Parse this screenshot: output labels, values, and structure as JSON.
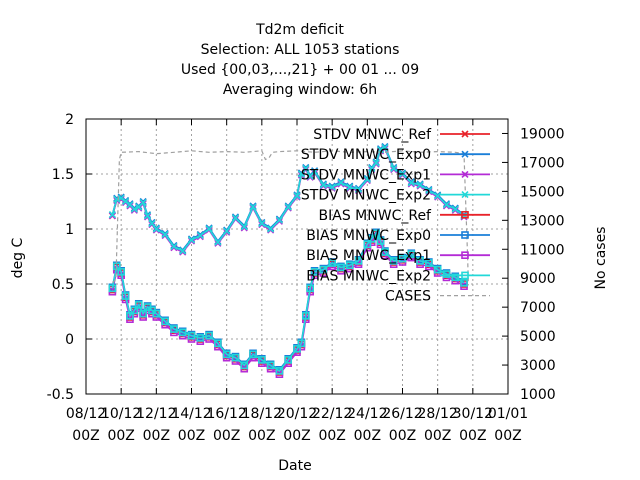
{
  "chart_data": {
    "type": "line",
    "title": [
      "Td2m deficit",
      "Selection: ALL    1053 stations",
      "Used {00,03,...,21} + 00 01 ... 09",
      "Averaging window:  6h"
    ],
    "xlabel": "Date",
    "ylabel": "deg C",
    "y2label": "No cases",
    "x_ticks": [
      {
        "day": 8,
        "l1": "08/12",
        "l2": "00Z"
      },
      {
        "day": 10,
        "l1": "10/12",
        "l2": "00Z"
      },
      {
        "day": 12,
        "l1": "12/12",
        "l2": "00Z"
      },
      {
        "day": 14,
        "l1": "14/12",
        "l2": "00Z"
      },
      {
        "day": 16,
        "l1": "16/12",
        "l2": "00Z"
      },
      {
        "day": 18,
        "l1": "18/12",
        "l2": "00Z"
      },
      {
        "day": 20,
        "l1": "20/12",
        "l2": "00Z"
      },
      {
        "day": 22,
        "l1": "22/12",
        "l2": "00Z"
      },
      {
        "day": 24,
        "l1": "24/12",
        "l2": "00Z"
      },
      {
        "day": 26,
        "l1": "26/12",
        "l2": "00Z"
      },
      {
        "day": 28,
        "l1": "28/12",
        "l2": "00Z"
      },
      {
        "day": 30,
        "l1": "30/12",
        "l2": "00Z"
      },
      {
        "day": 32,
        "l1": "01/01",
        "l2": "00Z"
      }
    ],
    "xlim": [
      8,
      32
    ],
    "ylim": [
      -0.5,
      2
    ],
    "y_ticks": [
      "-0.5",
      "0",
      "0.5",
      "1",
      "1.5",
      "2"
    ],
    "y2lim": [
      1000,
      20000
    ],
    "y2_ticks": [
      "1000",
      "3000",
      "5000",
      "7000",
      "9000",
      "11000",
      "13000",
      "15000",
      "17000",
      "19000"
    ],
    "grid": true,
    "legend_position": "top-right",
    "series": [
      {
        "name": "STDV MNWC_Ref",
        "color": "#e8232a",
        "marker": "x",
        "axis": "y1",
        "x": [
          9.5,
          9.75,
          10,
          10.25,
          10.5,
          10.75,
          11,
          11.25,
          11.5,
          11.75,
          12,
          12.5,
          13,
          13.5,
          14,
          14.5,
          15,
          15.5,
          16,
          16.5,
          17,
          17.5,
          18,
          18.5,
          19,
          19.5,
          20,
          20.25,
          20.5,
          20.75,
          21,
          21.5,
          22,
          22.5,
          23,
          23.5,
          24,
          24.25,
          24.5,
          24.75,
          25,
          25.5,
          26,
          26.5,
          27,
          27.5,
          28,
          28.5,
          29,
          29.5
        ],
        "y": [
          1.12,
          1.27,
          1.28,
          1.25,
          1.22,
          1.18,
          1.2,
          1.24,
          1.12,
          1.05,
          1.0,
          0.95,
          0.84,
          0.8,
          0.9,
          0.94,
          1.0,
          0.88,
          0.98,
          1.1,
          1.02,
          1.2,
          1.05,
          1.0,
          1.08,
          1.2,
          1.3,
          1.5,
          1.55,
          1.48,
          1.52,
          1.4,
          1.38,
          1.42,
          1.38,
          1.36,
          1.45,
          1.55,
          1.6,
          1.72,
          1.74,
          1.55,
          1.5,
          1.42,
          1.4,
          1.35,
          1.3,
          1.22,
          1.18,
          1.12
        ]
      },
      {
        "name": "STDV MNWC_Exp0",
        "color": "#1a7fd8",
        "marker": "x",
        "axis": "y1",
        "x": [
          9.5,
          9.75,
          10,
          10.25,
          10.5,
          10.75,
          11,
          11.25,
          11.5,
          11.75,
          12,
          12.5,
          13,
          13.5,
          14,
          14.5,
          15,
          15.5,
          16,
          16.5,
          17,
          17.5,
          18,
          18.5,
          19,
          19.5,
          20,
          20.25,
          20.5,
          20.75,
          21,
          21.5,
          22,
          22.5,
          23,
          23.5,
          24,
          24.25,
          24.5,
          24.75,
          25,
          25.5,
          26,
          26.5,
          27,
          27.5,
          28,
          28.5,
          29,
          29.5
        ],
        "y": [
          1.13,
          1.28,
          1.29,
          1.26,
          1.23,
          1.19,
          1.21,
          1.25,
          1.13,
          1.06,
          1.01,
          0.96,
          0.85,
          0.81,
          0.91,
          0.95,
          1.01,
          0.89,
          0.99,
          1.11,
          1.03,
          1.21,
          1.06,
          1.01,
          1.09,
          1.21,
          1.31,
          1.51,
          1.56,
          1.49,
          1.53,
          1.41,
          1.39,
          1.43,
          1.39,
          1.37,
          1.46,
          1.56,
          1.61,
          1.73,
          1.75,
          1.56,
          1.51,
          1.43,
          1.41,
          1.36,
          1.31,
          1.23,
          1.19,
          1.13
        ]
      },
      {
        "name": "STDV MNWC_Exp1",
        "color": "#b42bd6",
        "marker": "x",
        "axis": "y1",
        "x": [
          9.5,
          9.75,
          10,
          10.25,
          10.5,
          10.75,
          11,
          11.25,
          11.5,
          11.75,
          12,
          12.5,
          13,
          13.5,
          14,
          14.5,
          15,
          15.5,
          16,
          16.5,
          17,
          17.5,
          18,
          18.5,
          19,
          19.5,
          20,
          20.25,
          20.5,
          20.75,
          21,
          21.5,
          22,
          22.5,
          23,
          23.5,
          24,
          24.25,
          24.5,
          24.75,
          25,
          25.5,
          26,
          26.5,
          27,
          27.5,
          28,
          28.5,
          29,
          29.5
        ],
        "y": [
          1.12,
          1.26,
          1.27,
          1.24,
          1.21,
          1.17,
          1.19,
          1.23,
          1.11,
          1.04,
          0.99,
          0.94,
          0.83,
          0.79,
          0.89,
          0.93,
          0.99,
          0.87,
          0.97,
          1.09,
          1.01,
          1.19,
          1.04,
          0.99,
          1.07,
          1.19,
          1.29,
          1.49,
          1.54,
          1.47,
          1.51,
          1.39,
          1.37,
          1.41,
          1.37,
          1.35,
          1.44,
          1.54,
          1.59,
          1.71,
          1.73,
          1.54,
          1.49,
          1.41,
          1.39,
          1.34,
          1.29,
          1.21,
          1.17,
          1.11
        ]
      },
      {
        "name": "STDV MNWC_Exp2",
        "color": "#22d8d8",
        "marker": "x",
        "axis": "y1",
        "x": [
          9.5,
          9.75,
          10,
          10.25,
          10.5,
          10.75,
          11,
          11.25,
          11.5,
          11.75,
          12,
          12.5,
          13,
          13.5,
          14,
          14.5,
          15,
          15.5,
          16,
          16.5,
          17,
          17.5,
          18,
          18.5,
          19,
          19.5,
          20,
          20.25,
          20.5,
          20.75,
          21,
          21.5,
          22,
          22.5,
          23,
          23.5,
          24,
          24.25,
          24.5,
          24.75,
          25,
          25.5,
          26,
          26.5,
          27,
          27.5,
          28,
          28.5,
          29,
          29.5
        ],
        "y": [
          1.13,
          1.27,
          1.28,
          1.25,
          1.22,
          1.18,
          1.2,
          1.24,
          1.12,
          1.05,
          1.0,
          0.95,
          0.84,
          0.8,
          0.9,
          0.94,
          1.0,
          0.88,
          0.98,
          1.1,
          1.02,
          1.2,
          1.05,
          1.0,
          1.08,
          1.2,
          1.3,
          1.5,
          1.55,
          1.48,
          1.52,
          1.4,
          1.38,
          1.42,
          1.38,
          1.36,
          1.45,
          1.55,
          1.6,
          1.72,
          1.74,
          1.55,
          1.5,
          1.42,
          1.4,
          1.35,
          1.3,
          1.22,
          1.18,
          1.12
        ]
      },
      {
        "name": "BIAS MNWC_Ref",
        "color": "#e8232a",
        "marker": "square",
        "axis": "y1",
        "x": [
          9.5,
          9.75,
          10,
          10.25,
          10.5,
          10.75,
          11,
          11.25,
          11.5,
          11.75,
          12,
          12.5,
          13,
          13.5,
          14,
          14.5,
          15,
          15.5,
          16,
          16.5,
          17,
          17.5,
          18,
          18.5,
          19,
          19.5,
          20,
          20.25,
          20.5,
          20.75,
          21,
          21.5,
          22,
          22.5,
          23,
          23.5,
          24,
          24.25,
          24.5,
          24.75,
          25,
          25.5,
          26,
          26.5,
          27,
          27.5,
          28,
          28.5,
          29,
          29.5
        ],
        "y": [
          0.45,
          0.65,
          0.6,
          0.38,
          0.2,
          0.25,
          0.3,
          0.22,
          0.28,
          0.25,
          0.22,
          0.15,
          0.08,
          0.05,
          0.02,
          0.0,
          0.02,
          -0.05,
          -0.15,
          -0.18,
          -0.25,
          -0.15,
          -0.2,
          -0.25,
          -0.3,
          -0.2,
          -0.1,
          -0.05,
          0.2,
          0.45,
          0.6,
          0.62,
          0.68,
          0.64,
          0.66,
          0.7,
          0.85,
          0.9,
          0.95,
          0.88,
          0.78,
          0.7,
          0.72,
          0.76,
          0.7,
          0.68,
          0.62,
          0.58,
          0.55,
          0.5
        ]
      },
      {
        "name": "BIAS MNWC_Exp0",
        "color": "#1a7fd8",
        "marker": "square",
        "axis": "y1",
        "x": [
          9.5,
          9.75,
          10,
          10.25,
          10.5,
          10.75,
          11,
          11.25,
          11.5,
          11.75,
          12,
          12.5,
          13,
          13.5,
          14,
          14.5,
          15,
          15.5,
          16,
          16.5,
          17,
          17.5,
          18,
          18.5,
          19,
          19.5,
          20,
          20.25,
          20.5,
          20.75,
          21,
          21.5,
          22,
          22.5,
          23,
          23.5,
          24,
          24.25,
          24.5,
          24.75,
          25,
          25.5,
          26,
          26.5,
          27,
          27.5,
          28,
          28.5,
          29,
          29.5
        ],
        "y": [
          0.47,
          0.67,
          0.62,
          0.4,
          0.22,
          0.27,
          0.32,
          0.24,
          0.3,
          0.27,
          0.24,
          0.17,
          0.1,
          0.07,
          0.04,
          0.02,
          0.04,
          -0.03,
          -0.13,
          -0.16,
          -0.23,
          -0.13,
          -0.18,
          -0.23,
          -0.28,
          -0.18,
          -0.08,
          -0.03,
          0.22,
          0.47,
          0.62,
          0.64,
          0.7,
          0.66,
          0.68,
          0.72,
          0.87,
          0.92,
          0.97,
          0.9,
          0.8,
          0.72,
          0.74,
          0.78,
          0.72,
          0.7,
          0.64,
          0.6,
          0.57,
          0.52
        ]
      },
      {
        "name": "BIAS MNWC_Exp1",
        "color": "#b42bd6",
        "marker": "square",
        "axis": "y1",
        "x": [
          9.5,
          9.75,
          10,
          10.25,
          10.5,
          10.75,
          11,
          11.25,
          11.5,
          11.75,
          12,
          12.5,
          13,
          13.5,
          14,
          14.5,
          15,
          15.5,
          16,
          16.5,
          17,
          17.5,
          18,
          18.5,
          19,
          19.5,
          20,
          20.25,
          20.5,
          20.75,
          21,
          21.5,
          22,
          22.5,
          23,
          23.5,
          24,
          24.25,
          24.5,
          24.75,
          25,
          25.5,
          26,
          26.5,
          27,
          27.5,
          28,
          28.5,
          29,
          29.5
        ],
        "y": [
          0.43,
          0.63,
          0.58,
          0.36,
          0.18,
          0.23,
          0.28,
          0.2,
          0.26,
          0.23,
          0.2,
          0.13,
          0.06,
          0.03,
          0.0,
          -0.02,
          0.0,
          -0.07,
          -0.17,
          -0.2,
          -0.27,
          -0.17,
          -0.22,
          -0.27,
          -0.32,
          -0.22,
          -0.12,
          -0.07,
          0.18,
          0.43,
          0.58,
          0.6,
          0.66,
          0.62,
          0.64,
          0.68,
          0.83,
          0.88,
          0.93,
          0.86,
          0.76,
          0.68,
          0.7,
          0.74,
          0.68,
          0.66,
          0.6,
          0.56,
          0.53,
          0.48
        ]
      },
      {
        "name": "BIAS MNWC_Exp2",
        "color": "#22d8d8",
        "marker": "square",
        "axis": "y1",
        "x": [
          9.5,
          9.75,
          10,
          10.25,
          10.5,
          10.75,
          11,
          11.25,
          11.5,
          11.75,
          12,
          12.5,
          13,
          13.5,
          14,
          14.5,
          15,
          15.5,
          16,
          16.5,
          17,
          17.5,
          18,
          18.5,
          19,
          19.5,
          20,
          20.25,
          20.5,
          20.75,
          21,
          21.5,
          22,
          22.5,
          23,
          23.5,
          24,
          24.25,
          24.5,
          24.75,
          25,
          25.5,
          26,
          26.5,
          27,
          27.5,
          28,
          28.5,
          29,
          29.5
        ],
        "y": [
          0.46,
          0.66,
          0.61,
          0.39,
          0.21,
          0.26,
          0.31,
          0.23,
          0.29,
          0.26,
          0.23,
          0.16,
          0.09,
          0.06,
          0.03,
          0.01,
          0.03,
          -0.04,
          -0.14,
          -0.17,
          -0.24,
          -0.14,
          -0.19,
          -0.24,
          -0.29,
          -0.19,
          -0.09,
          -0.04,
          0.21,
          0.46,
          0.61,
          0.63,
          0.69,
          0.65,
          0.67,
          0.71,
          0.86,
          0.91,
          0.96,
          0.89,
          0.79,
          0.71,
          0.73,
          0.77,
          0.71,
          0.69,
          0.63,
          0.59,
          0.56,
          0.51
        ]
      },
      {
        "name": "CASES",
        "color": "#a0a0a0",
        "marker": "none",
        "dashed": true,
        "axis": "y2",
        "x": [
          9.5,
          9.7,
          9.9,
          10,
          11,
          12,
          13,
          14,
          15,
          16,
          17,
          18,
          18.2,
          18.4,
          18.6,
          19,
          20,
          21,
          22,
          23,
          24,
          25,
          26,
          27,
          28,
          29,
          29.5,
          29.6,
          29.7,
          29.75
        ],
        "y": [
          8700,
          8900,
          17200,
          17700,
          17750,
          17600,
          17700,
          17800,
          17700,
          17750,
          17700,
          17800,
          17200,
          17300,
          17700,
          17750,
          17800,
          17700,
          17800,
          17700,
          17750,
          17700,
          17800,
          17700,
          17750,
          17700,
          17600,
          14000,
          10500,
          8500
        ]
      }
    ]
  }
}
